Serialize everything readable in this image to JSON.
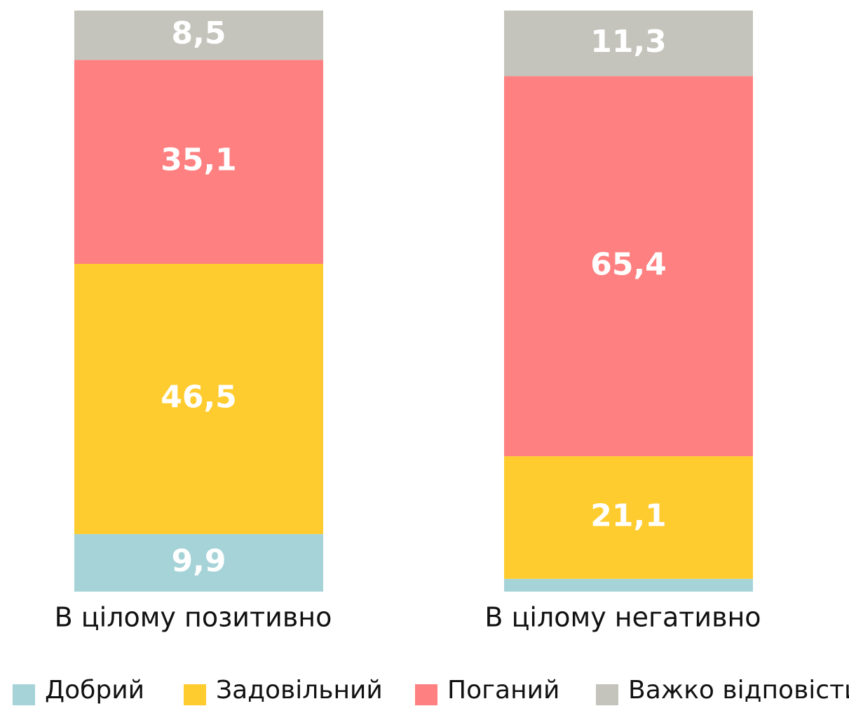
{
  "chart_data": {
    "type": "stacked_bar",
    "categories": [
      "В цілому позитивно",
      "В цілому негативно"
    ],
    "series": [
      {
        "name": "Добрий",
        "color": "#a6d3d8",
        "values": [
          9.9,
          2.2
        ],
        "value_labels": [
          "9,9",
          null
        ]
      },
      {
        "name": "Задовільний",
        "color": "#ffcc2f",
        "values": [
          46.5,
          21.1
        ],
        "value_labels": [
          "46,5",
          "21,1"
        ]
      },
      {
        "name": "Поганий",
        "color": "#ff8080",
        "values": [
          35.1,
          65.4
        ],
        "value_labels": [
          "35,1",
          "65,4"
        ]
      },
      {
        "name": "Важко відповісти",
        "color": "#c4c4bc",
        "values": [
          8.5,
          11.3
        ],
        "value_labels": [
          "8,5",
          "11,3"
        ]
      }
    ],
    "ylim": [
      0,
      100
    ]
  }
}
